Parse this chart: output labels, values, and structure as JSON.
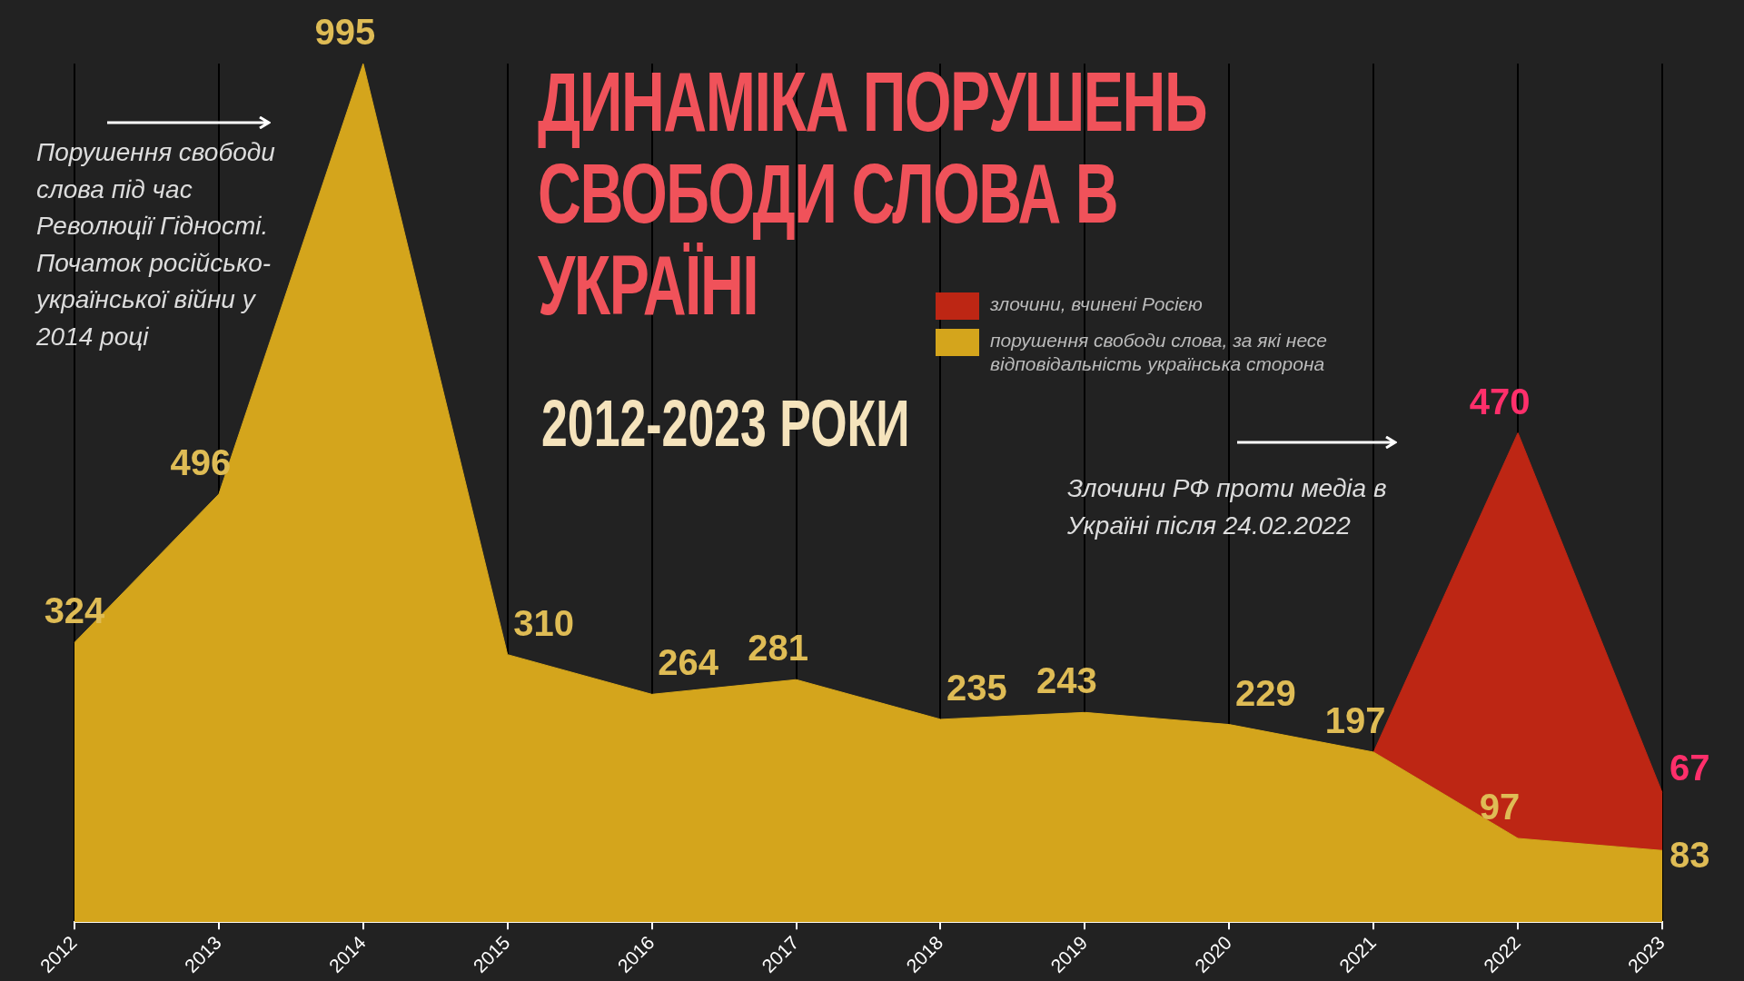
{
  "chart_data": {
    "type": "area",
    "title": "ДИНАМІКА ПОРУШЕНЬ СВОБОДИ СЛОВА В УКРАЇНІ",
    "subtitle": "2012-2023 РОКИ",
    "categories": [
      "2012",
      "2013",
      "2014",
      "2015",
      "2016",
      "2017",
      "2018",
      "2019",
      "2020",
      "2021",
      "2022",
      "2023"
    ],
    "stacked": true,
    "grid": "x",
    "legend": "top",
    "tick_labels": "x",
    "series": [
      {
        "name": "порушення свободи слова, за які несе відповідальність українська сторона",
        "color": "#d4a51c",
        "values": [
          324,
          496,
          995,
          310,
          264,
          281,
          235,
          243,
          229,
          197,
          97,
          83
        ],
        "value_labels": [
          "324",
          "496",
          "995",
          "310",
          "264",
          "281",
          "235",
          "243",
          "229",
          "197",
          "97",
          "83"
        ]
      },
      {
        "name": "злочини, вчинені Росією",
        "color": "#bd2614",
        "values": [
          null,
          null,
          null,
          null,
          null,
          null,
          null,
          null,
          null,
          0,
          470,
          67
        ],
        "value_labels": [
          null,
          null,
          null,
          null,
          null,
          null,
          null,
          null,
          null,
          null,
          "470",
          "67"
        ]
      }
    ],
    "annotations": [
      "Порушення свободи слова під час Революції Гідності. Початок російсько-української війни у 2014 році",
      "Злочини РФ проти медіа в Україні після 24.02.2022"
    ]
  }
}
